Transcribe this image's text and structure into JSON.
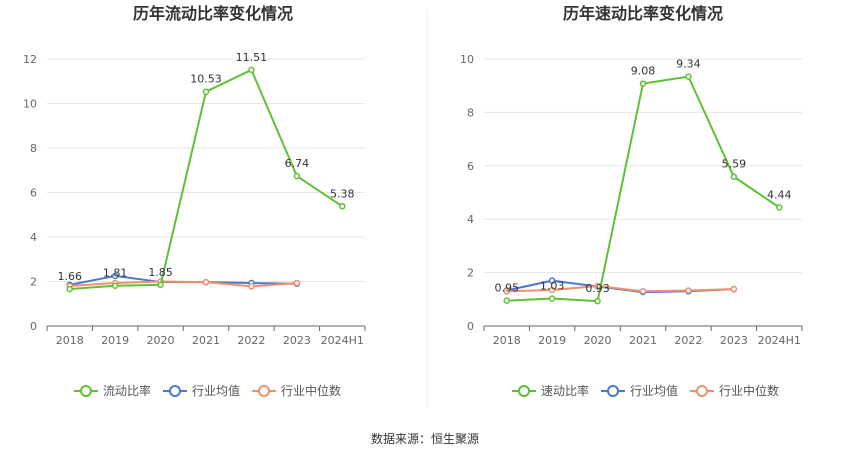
{
  "source": "数据来源：恒生聚源",
  "chart_data": [
    {
      "type": "line",
      "title": "历年流动比率变化情况",
      "categories": [
        "2018",
        "2019",
        "2020",
        "2021",
        "2022",
        "2023",
        "2024H1"
      ],
      "ylim": [
        0,
        12
      ],
      "yticks": [
        0,
        2,
        4,
        6,
        8,
        10,
        12
      ],
      "grid": true,
      "legend_position": "bottom",
      "series": [
        {
          "name": "流动比率",
          "color": "#5ec133",
          "values": [
            1.66,
            1.81,
            1.85,
            10.53,
            11.51,
            6.74,
            5.38
          ],
          "labels": [
            "1.66",
            "1.81",
            "1.85",
            "10.53",
            "11.51",
            "6.74",
            "5.38"
          ]
        },
        {
          "name": "行业均值",
          "color": "#4a78d0",
          "values": [
            1.85,
            2.25,
            1.98,
            1.97,
            1.93,
            1.9,
            null
          ]
        },
        {
          "name": "行业中位数",
          "color": "#f0906a",
          "values": [
            1.8,
            1.93,
            2.0,
            1.97,
            1.78,
            1.93,
            null
          ]
        }
      ]
    },
    {
      "type": "line",
      "title": "历年速动比率变化情况",
      "categories": [
        "2018",
        "2019",
        "2020",
        "2021",
        "2022",
        "2023",
        "2024H1"
      ],
      "ylim": [
        0,
        10
      ],
      "yticks": [
        0,
        2,
        4,
        6,
        8,
        10
      ],
      "grid": true,
      "legend_position": "bottom",
      "series": [
        {
          "name": "速动比率",
          "color": "#5ec133",
          "values": [
            0.95,
            1.03,
            0.93,
            9.08,
            9.34,
            5.59,
            4.44
          ],
          "labels": [
            "0.95",
            "1.03",
            "0.93",
            "9.08",
            "9.34",
            "5.59",
            "4.44"
          ]
        },
        {
          "name": "行业均值",
          "color": "#4a78d0",
          "values": [
            1.33,
            1.7,
            1.48,
            1.27,
            1.3,
            1.38,
            null
          ]
        },
        {
          "name": "行业中位数",
          "color": "#f0906a",
          "values": [
            1.3,
            1.35,
            1.5,
            1.3,
            1.33,
            1.38,
            null
          ]
        }
      ]
    }
  ]
}
